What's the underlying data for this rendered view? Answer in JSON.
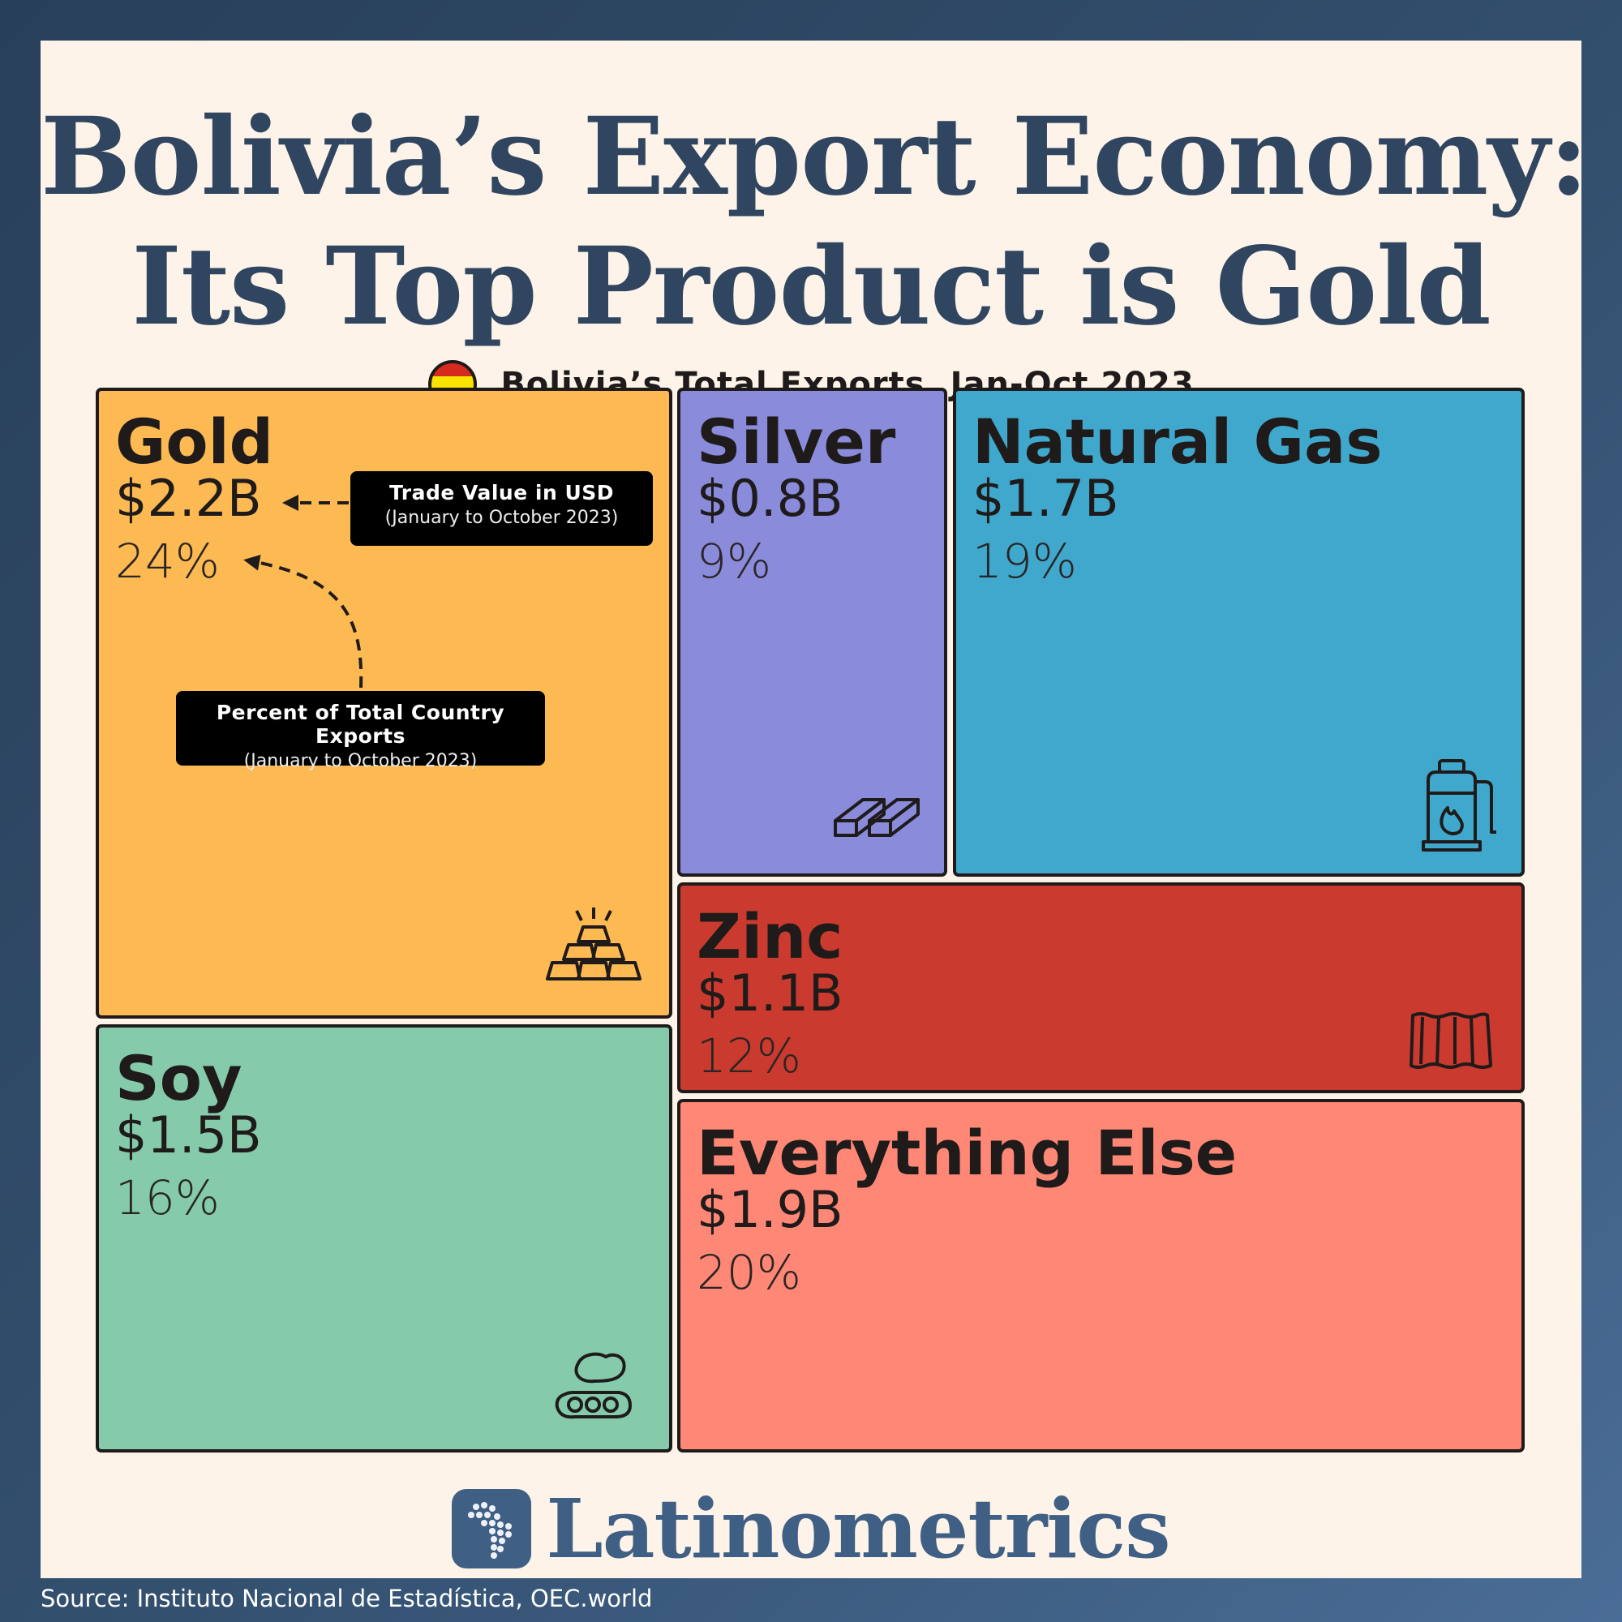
{
  "header": {
    "title_line1": "Bolivia’s Export Economy:",
    "title_line2": "Its Top Product is Gold",
    "subtitle": "Bolivia’s Total Exports, Jan-Oct 2023"
  },
  "annotations": {
    "trade_value_main": "Trade Value in USD",
    "trade_value_sub": "(January to October 2023)",
    "percent_main": "Percent of Total Country Exports",
    "percent_sub": "(January to October 2023)"
  },
  "chart_data": {
    "type": "treemap",
    "title": "Bolivia’s Total Exports, Jan-Oct 2023",
    "items": [
      {
        "name": "Gold",
        "value_label": "$2.2B",
        "value": 2.2,
        "percent_label": "24%",
        "percent": 24,
        "color": "#fdb952",
        "icon": "gold-bars-icon"
      },
      {
        "name": "Silver",
        "value_label": "$0.8B",
        "value": 0.8,
        "percent_label": "9%",
        "percent": 9,
        "color": "#8a8bdb",
        "icon": "silver-bars-icon"
      },
      {
        "name": "Natural Gas",
        "value_label": "$1.7B",
        "value": 1.7,
        "percent_label": "19%",
        "percent": 19,
        "color": "#41a8cd",
        "icon": "gas-cylinder-icon"
      },
      {
        "name": "Zinc",
        "value_label": "$1.1B",
        "value": 1.1,
        "percent_label": "12%",
        "percent": 12,
        "color": "#ca3a2e",
        "icon": "zinc-sheet-icon"
      },
      {
        "name": "Soy",
        "value_label": "$1.5B",
        "value": 1.5,
        "percent_label": "16%",
        "percent": 16,
        "color": "#85cbab",
        "icon": "soybean-icon"
      },
      {
        "name": "Everything Else",
        "value_label": "$1.9B",
        "value": 1.9,
        "percent_label": "20%",
        "percent": 20,
        "color": "#fe8775",
        "icon": ""
      }
    ]
  },
  "brand": {
    "name": "Latinometrics",
    "logo_color": "#3f5f85"
  },
  "footer": {
    "source": "Source: Instituto Nacional de Estadística, OEC.world"
  }
}
